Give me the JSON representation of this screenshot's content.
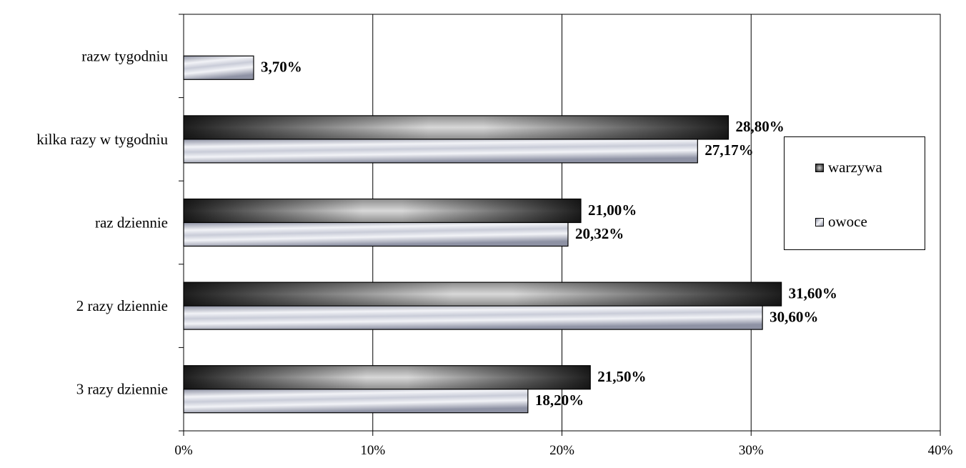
{
  "chart_data": {
    "type": "bar",
    "orientation": "horizontal",
    "categories": [
      "razw tygodniu",
      "kilka razy w tygodniu",
      "raz dziennie",
      "2 razy dziennie",
      "3 razy dziennie"
    ],
    "series": [
      {
        "name": "warzywa",
        "values": [
          null,
          28.8,
          21.0,
          31.6,
          21.5
        ],
        "labels": [
          "",
          "28,80%",
          "21,00%",
          "31,60%",
          "21,50%"
        ],
        "color": "#2a2a2a"
      },
      {
        "name": "owoce",
        "values": [
          3.7,
          27.17,
          20.32,
          30.6,
          18.2
        ],
        "labels": [
          "3,70%",
          "27,17%",
          "20,32%",
          "30,60%",
          "18,20%"
        ],
        "color": "#b8bcc8"
      }
    ],
    "xlim": [
      0,
      40
    ],
    "xticks": [
      0,
      10,
      20,
      30,
      40
    ],
    "xtick_labels": [
      "0%",
      "10%",
      "20%",
      "30%",
      "40%"
    ],
    "grid": "vertical",
    "legend_position": "right"
  }
}
